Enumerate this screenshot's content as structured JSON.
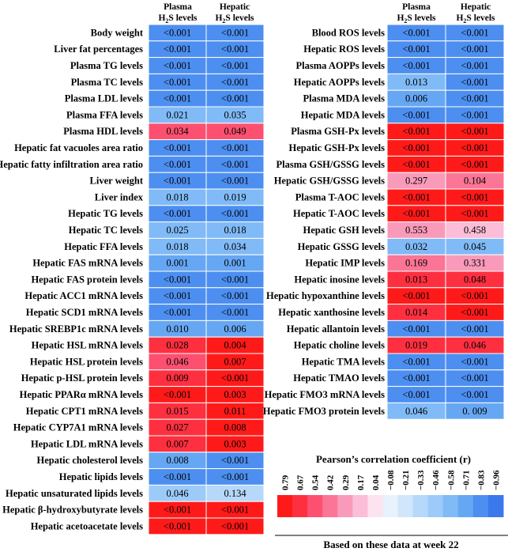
{
  "chart_data": {
    "type": "heatmap",
    "columns": [
      "Plasma H2S levels",
      "Hepatic H2S levels"
    ],
    "left_panel": {
      "rows": [
        {
          "label": "Body weight",
          "r": [
            -0.83,
            -0.83
          ],
          "p": [
            "<0.001",
            "<0.001"
          ]
        },
        {
          "label": "Liver fat percentages",
          "r": [
            -0.83,
            -0.83
          ],
          "p": [
            "<0.001",
            "<0.001"
          ]
        },
        {
          "label": "Plasma TG levels",
          "r": [
            -0.83,
            -0.83
          ],
          "p": [
            "<0.001",
            "<0.001"
          ]
        },
        {
          "label": "Plasma TC levels",
          "r": [
            -0.83,
            -0.83
          ],
          "p": [
            "<0.001",
            "<0.001"
          ]
        },
        {
          "label": "Plasma LDL levels",
          "r": [
            -0.83,
            -0.83
          ],
          "p": [
            "<0.001",
            "<0.001"
          ]
        },
        {
          "label": "Plasma FFA levels",
          "r": [
            -0.58,
            -0.58
          ],
          "p": [
            "0.021",
            "0.035"
          ]
        },
        {
          "label": "Plasma HDL levels",
          "r": [
            0.54,
            0.54
          ],
          "p": [
            "0.034",
            "0.049"
          ]
        },
        {
          "label": "Hepatic fat vacuoles area ratio",
          "r": [
            -0.83,
            -0.83
          ],
          "p": [
            "<0.001",
            "<0.001"
          ]
        },
        {
          "label": "Hepatic fatty infiltration area ratio",
          "r": [
            -0.83,
            -0.83
          ],
          "p": [
            "<0.001",
            "<0.001"
          ]
        },
        {
          "label": "Liver weight",
          "r": [
            -0.83,
            -0.83
          ],
          "p": [
            "<0.001",
            "<0.001"
          ]
        },
        {
          "label": "Liver index",
          "r": [
            -0.58,
            -0.58
          ],
          "p": [
            "0.018",
            "0.019"
          ]
        },
        {
          "label": "Hepatic TG levels",
          "r": [
            -0.83,
            -0.83
          ],
          "p": [
            "<0.001",
            "<0.001"
          ]
        },
        {
          "label": "Hepatic TC levels",
          "r": [
            -0.58,
            -0.58
          ],
          "p": [
            "0.025",
            "0.018"
          ]
        },
        {
          "label": "Hepatic FFA levels",
          "r": [
            -0.58,
            -0.58
          ],
          "p": [
            "0.018",
            "0.034"
          ]
        },
        {
          "label": "Hepatic FAS mRNA levels",
          "r": [
            -0.71,
            -0.71
          ],
          "p": [
            "0.001",
            "0.001"
          ]
        },
        {
          "label": "Hepatic FAS protein levels",
          "r": [
            -0.83,
            -0.83
          ],
          "p": [
            "<0.001",
            "<0.001"
          ]
        },
        {
          "label": "Hepatic ACC1 mRNA levels",
          "r": [
            -0.83,
            -0.83
          ],
          "p": [
            "<0.001",
            "<0.001"
          ]
        },
        {
          "label": "Hepatic SCD1 mRNA levels",
          "r": [
            -0.83,
            -0.83
          ],
          "p": [
            "<0.001",
            "<0.001"
          ]
        },
        {
          "label": "Hepatic SREBP1c mRNA levels",
          "r": [
            -0.71,
            -0.71
          ],
          "p": [
            "0.010",
            "0.006"
          ]
        },
        {
          "label": "Hepatic HSL mRNA levels",
          "r": [
            0.67,
            0.79
          ],
          "p": [
            "0.028",
            "0.004"
          ]
        },
        {
          "label": "Hepatic HSL protein levels",
          "r": [
            0.54,
            0.79
          ],
          "p": [
            "0.046",
            "0.007"
          ]
        },
        {
          "label": "Hepatic p-HSL protein levels",
          "r": [
            0.67,
            0.79
          ],
          "p": [
            "0.009",
            "<0.001"
          ]
        },
        {
          "label": "Hepatic PPARα mRNA levels",
          "r": [
            0.79,
            0.79
          ],
          "p": [
            "<0.001",
            "0.003"
          ]
        },
        {
          "label": "Hepatic CPT1 mRNA levels",
          "r": [
            0.67,
            0.79
          ],
          "p": [
            "0.015",
            "0.011"
          ]
        },
        {
          "label": "Hepatic CYP7A1 mRNA levels",
          "r": [
            0.67,
            0.79
          ],
          "p": [
            "0.027",
            "0.008"
          ]
        },
        {
          "label": "Hepatic LDL mRNA levels",
          "r": [
            0.67,
            0.79
          ],
          "p": [
            "0.007",
            "0.003"
          ]
        },
        {
          "label": "Hepatic cholesterol levels",
          "r": [
            -0.71,
            -0.83
          ],
          "p": [
            "0.008",
            "<0.001"
          ]
        },
        {
          "label": "Hepatic lipids levels",
          "r": [
            -0.83,
            -0.83
          ],
          "p": [
            "<0.001",
            "<0.001"
          ]
        },
        {
          "label": "Hepatic unsaturated lipids levels",
          "r": [
            -0.46,
            -0.33
          ],
          "p": [
            "0.046",
            "0.134"
          ]
        },
        {
          "label": "Hepatic β-hydroxybutyrate levels",
          "r": [
            0.79,
            0.79
          ],
          "p": [
            "<0.001",
            "<0.001"
          ]
        },
        {
          "label": "Hepatic acetoacetate levels",
          "r": [
            0.79,
            0.79
          ],
          "p": [
            "<0.001",
            "<0.001"
          ]
        }
      ]
    },
    "right_panel": {
      "rows": [
        {
          "label": "Blood ROS levels",
          "r": [
            -0.83,
            -0.83
          ],
          "p": [
            "<0.001",
            "<0.001"
          ]
        },
        {
          "label": "Hepatic ROS levels",
          "r": [
            -0.83,
            -0.83
          ],
          "p": [
            "<0.001",
            "<0.001"
          ]
        },
        {
          "label": "Plasma AOPPs levels",
          "r": [
            -0.83,
            -0.83
          ],
          "p": [
            "<0.001",
            "<0.001"
          ]
        },
        {
          "label": "Hepatic AOPPs levels",
          "r": [
            -0.58,
            -0.83
          ],
          "p": [
            "0.013",
            "<0.001"
          ]
        },
        {
          "label": "Plasma MDA levels",
          "r": [
            -0.71,
            -0.83
          ],
          "p": [
            "0.006",
            "<0.001"
          ]
        },
        {
          "label": "Hepatic MDA levels",
          "r": [
            -0.83,
            -0.83
          ],
          "p": [
            "<0.001",
            "<0.001"
          ]
        },
        {
          "label": "Plasma GSH-Px levels",
          "r": [
            0.79,
            0.79
          ],
          "p": [
            "<0.001",
            "<0.001"
          ]
        },
        {
          "label": "Hepatic GSH-Px levels",
          "r": [
            0.79,
            0.79
          ],
          "p": [
            "<0.001",
            "<0.001"
          ]
        },
        {
          "label": "Plasma GSH/GSSG levels",
          "r": [
            0.79,
            0.79
          ],
          "p": [
            "<0.001",
            "<0.001"
          ]
        },
        {
          "label": "Hepatic GSH/GSSG levels",
          "r": [
            0.29,
            0.42
          ],
          "p": [
            "0.297",
            "0.104"
          ]
        },
        {
          "label": "Plasma T-AOC levels",
          "r": [
            0.79,
            0.79
          ],
          "p": [
            "<0.001",
            "<0.001"
          ]
        },
        {
          "label": "Hepatic T-AOC levels",
          "r": [
            0.79,
            0.79
          ],
          "p": [
            "<0.001",
            "<0.001"
          ]
        },
        {
          "label": "Hepatic GSH levels",
          "r": [
            0.29,
            0.17
          ],
          "p": [
            "0.553",
            "0.458"
          ]
        },
        {
          "label": "Hepatic GSSG levels",
          "r": [
            -0.58,
            -0.58
          ],
          "p": [
            "0.032",
            "0.045"
          ]
        },
        {
          "label": "Hepatic IMP levels",
          "r": [
            0.42,
            0.29
          ],
          "p": [
            "0.169",
            "0.331"
          ]
        },
        {
          "label": "Hepatic inosine levels",
          "r": [
            0.67,
            0.67
          ],
          "p": [
            "0.013",
            "0.048"
          ]
        },
        {
          "label": "Hepatic hypoxanthine levels",
          "r": [
            0.79,
            0.79
          ],
          "p": [
            "<0.001",
            "<0.001"
          ]
        },
        {
          "label": "Hepatic xanthosine levels",
          "r": [
            0.67,
            0.79
          ],
          "p": [
            "0.014",
            "<0.001"
          ]
        },
        {
          "label": "Hepatic allantoin levels",
          "r": [
            -0.83,
            -0.83
          ],
          "p": [
            "<0.001",
            "<0.001"
          ]
        },
        {
          "label": "Hepatic choline levels",
          "r": [
            0.67,
            0.67
          ],
          "p": [
            "0.019",
            "0.046"
          ]
        },
        {
          "label": "Hepatic TMA levels",
          "r": [
            -0.83,
            -0.83
          ],
          "p": [
            "<0.001",
            "<0.001"
          ]
        },
        {
          "label": "Hepatic TMAO levels",
          "r": [
            -0.83,
            -0.83
          ],
          "p": [
            "<0.001",
            "<0.001"
          ]
        },
        {
          "label": "Hepatic FMO3 mRNA levels",
          "r": [
            -0.83,
            -0.83
          ],
          "p": [
            "<0.001",
            "<0.001"
          ]
        },
        {
          "label": "Hepatic FMO3 protein levels",
          "r": [
            -0.58,
            -0.71
          ],
          "p": [
            "0.046",
            "0. 009"
          ]
        }
      ]
    },
    "legend": {
      "title": "Pearson’s correlation coefficient (r)",
      "ticks": [
        "0.79",
        "0.67",
        "0.54",
        "0.42",
        "0.29",
        "0.17",
        "0.04",
        "−0.08",
        "−0.21",
        "−0.33",
        "−0.46",
        "−0.58",
        "−0.71",
        "−0.83",
        "−0.96"
      ],
      "colors": [
        "#ff1a1a",
        "#fe3040",
        "#fd5070",
        "#fb7596",
        "#fa9aba",
        "#fbbdd7",
        "#fde2ef",
        "#e7f2fc",
        "#cfe6fb",
        "#b6d8fa",
        "#9ccbf9",
        "#80baf7",
        "#66a7f3",
        "#4d8ff0",
        "#3a78ec"
      ]
    },
    "footnote": "Based on these data at week 22"
  }
}
